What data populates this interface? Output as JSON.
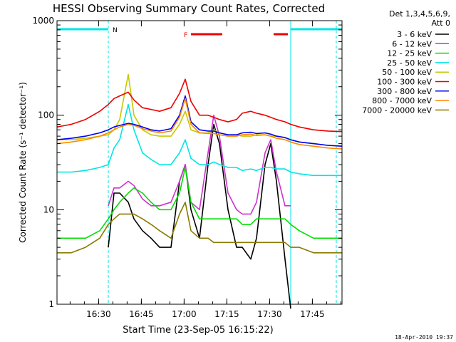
{
  "chart_data": {
    "type": "line",
    "title": "HESSI Observing Summary Count Rates, Corrected",
    "xlabel": "Start Time (23-Sep-05 16:15:22)",
    "ylabel": "Corrected Count Rate (s⁻¹ detector⁻¹)",
    "x_unit": "minutes after 16:15:22",
    "xlim": [
      0,
      100
    ],
    "ylim": [
      1,
      1000
    ],
    "yscale": "log",
    "x_tick_labels": [
      "16:30",
      "16:45",
      "17:00",
      "17:15",
      "17:30",
      "17:45"
    ],
    "x_ticks": [
      14.6,
      29.6,
      44.6,
      59.6,
      74.6,
      89.6
    ],
    "y_tick_labels": [
      "1",
      "10",
      "100",
      "1000"
    ],
    "y_ticks": [
      1,
      10,
      100,
      1000
    ],
    "legend_header": [
      "Det 1,3,4,5,6,9,",
      "Att 0"
    ],
    "legend_position": "right-outside",
    "timestamp": "18-Apr-2010 19:37",
    "flag_labels": {
      "night": "N",
      "flare": "F"
    },
    "night_bars": [
      [
        0,
        18
      ],
      [
        82,
        100
      ]
    ],
    "flare_bars": [
      [
        47,
        58
      ],
      [
        76,
        81
      ]
    ],
    "night_boundaries": [
      18,
      82,
      98
    ],
    "saa_boundary": 82,
    "x": [
      0,
      5,
      10,
      15,
      18,
      20,
      22,
      25,
      27,
      30,
      33,
      36,
      40,
      43,
      45,
      47,
      50,
      53,
      55,
      57,
      60,
      63,
      65,
      68,
      70,
      73,
      75,
      77,
      80,
      82,
      85,
      90,
      95,
      100
    ],
    "series": [
      {
        "name": "3 - 6 keV",
        "color": "#000000",
        "values": [
          null,
          null,
          null,
          null,
          4,
          15,
          15,
          12,
          8,
          6,
          5,
          4,
          4,
          20,
          30,
          10,
          5,
          30,
          80,
          50,
          10,
          4,
          4,
          3,
          5,
          30,
          50,
          20,
          3,
          0.9,
          null,
          null,
          null,
          null
        ]
      },
      {
        "name": "6 - 12 keV",
        "color": "#cc33cc",
        "values": [
          null,
          null,
          null,
          null,
          11,
          17,
          17,
          20,
          18,
          13,
          11,
          11,
          12,
          20,
          30,
          12,
          10,
          40,
          100,
          60,
          15,
          10,
          9,
          9,
          12,
          40,
          55,
          25,
          11,
          11,
          null,
          null,
          null,
          null
        ]
      },
      {
        "name": "12 - 25 keV",
        "color": "#00dd00",
        "values": [
          5,
          5,
          5,
          6,
          8,
          10,
          12,
          15,
          17,
          15,
          12,
          10,
          10,
          15,
          28,
          12,
          8,
          8,
          8,
          8,
          8,
          8,
          7,
          7,
          8,
          8,
          8,
          8,
          8,
          7,
          6,
          5,
          5,
          5
        ]
      },
      {
        "name": "25 - 50 keV",
        "color": "#00e5e5",
        "values": [
          25,
          25,
          26,
          28,
          30,
          45,
          55,
          130,
          70,
          40,
          34,
          30,
          30,
          40,
          55,
          35,
          30,
          30,
          32,
          30,
          28,
          28,
          26,
          27,
          26,
          28,
          28,
          27,
          27,
          25,
          24,
          23,
          23,
          23
        ]
      },
      {
        "name": "50 - 100 keV",
        "color": "#c8c800",
        "values": [
          55,
          55,
          57,
          60,
          62,
          70,
          90,
          270,
          100,
          70,
          62,
          60,
          60,
          80,
          110,
          70,
          65,
          65,
          70,
          65,
          62,
          62,
          60,
          60,
          62,
          62,
          60,
          60,
          58,
          55,
          52,
          50,
          48,
          47
        ]
      },
      {
        "name": "100 - 300 keV",
        "color": "#ee0000",
        "values": [
          75,
          80,
          90,
          110,
          130,
          150,
          160,
          175,
          145,
          120,
          115,
          110,
          120,
          170,
          240,
          140,
          100,
          100,
          95,
          90,
          85,
          90,
          105,
          110,
          105,
          100,
          95,
          90,
          85,
          80,
          75,
          70,
          68,
          67
        ]
      },
      {
        "name": "300 - 800 keV",
        "color": "#0000ee",
        "values": [
          55,
          57,
          60,
          65,
          70,
          75,
          78,
          82,
          80,
          75,
          70,
          68,
          72,
          100,
          160,
          85,
          70,
          68,
          68,
          65,
          62,
          62,
          65,
          66,
          64,
          65,
          63,
          60,
          58,
          55,
          52,
          50,
          48,
          47
        ]
      },
      {
        "name": "800 - 7000 keV",
        "color": "#ff8800",
        "values": [
          50,
          52,
          55,
          60,
          65,
          70,
          75,
          80,
          78,
          72,
          68,
          65,
          68,
          95,
          150,
          80,
          65,
          64,
          64,
          62,
          60,
          60,
          62,
          63,
          61,
          62,
          60,
          57,
          55,
          52,
          49,
          47,
          45,
          44
        ]
      },
      {
        "name": "7000 - 20000 keV",
        "color": "#8b7a00",
        "values": [
          3.5,
          3.5,
          4,
          5,
          7,
          8,
          9,
          9,
          9,
          8,
          7,
          6,
          5,
          9,
          12,
          6,
          5,
          5,
          4.5,
          4.5,
          4.5,
          4.5,
          4.5,
          4.5,
          4.5,
          4.5,
          4.5,
          4.5,
          4.5,
          4,
          4,
          3.5,
          3.5,
          3.5
        ]
      }
    ]
  }
}
